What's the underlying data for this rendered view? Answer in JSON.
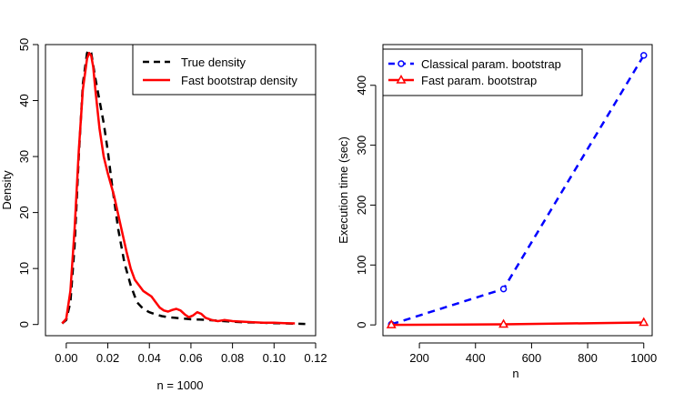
{
  "chart_data": [
    {
      "type": "line",
      "title": "",
      "xlabel": "n = 1000",
      "ylabel": "Density",
      "xlim": [
        -0.01,
        0.12
      ],
      "ylim": [
        -2,
        50
      ],
      "xticks": [
        "0.00",
        "0.02",
        "0.04",
        "0.06",
        "0.08",
        "0.10",
        "0.12"
      ],
      "yticks": [
        "0",
        "10",
        "20",
        "30",
        "40",
        "50"
      ],
      "legend_position": "top-right",
      "series": [
        {
          "name": "True density",
          "color": "#000000",
          "style": "dashed",
          "x": [
            -0.002,
            0.0,
            0.002,
            0.004,
            0.006,
            0.008,
            0.01,
            0.011,
            0.012,
            0.014,
            0.016,
            0.018,
            0.02,
            0.022,
            0.025,
            0.028,
            0.031,
            0.034,
            0.037,
            0.04,
            0.043,
            0.046,
            0.049,
            0.052,
            0.055,
            0.058,
            0.061,
            0.064,
            0.068,
            0.072,
            0.076,
            0.08,
            0.085,
            0.09,
            0.095,
            0.1,
            0.105,
            0.11,
            0.115
          ],
          "y": [
            0.2,
            0.8,
            4,
            14,
            30,
            43,
            48.5,
            49,
            48.5,
            44,
            40,
            36,
            31,
            25,
            17,
            11,
            7,
            4,
            2.8,
            2.2,
            1.8,
            1.5,
            1.3,
            1.2,
            1.1,
            1.0,
            0.9,
            0.9,
            0.8,
            0.7,
            0.6,
            0.5,
            0.4,
            0.35,
            0.3,
            0.25,
            0.2,
            0.15,
            0.1
          ]
        },
        {
          "name": "Fast bootstrap density",
          "color": "#ff0000",
          "style": "solid",
          "x": [
            -0.002,
            0.0,
            0.002,
            0.004,
            0.006,
            0.008,
            0.01,
            0.011,
            0.012,
            0.013,
            0.014,
            0.016,
            0.018,
            0.02,
            0.023,
            0.026,
            0.029,
            0.031,
            0.033,
            0.035,
            0.037,
            0.039,
            0.041,
            0.043,
            0.045,
            0.047,
            0.049,
            0.051,
            0.053,
            0.055,
            0.057,
            0.059,
            0.061,
            0.063,
            0.065,
            0.067,
            0.07,
            0.073,
            0.076,
            0.08,
            0.085,
            0.09,
            0.095,
            0.1,
            0.105,
            0.11
          ],
          "y": [
            0.2,
            1,
            6,
            17,
            31,
            42,
            47.5,
            48.5,
            48,
            46,
            42,
            35,
            30,
            27,
            23,
            18,
            13,
            10,
            8,
            7,
            6,
            5.5,
            5,
            4,
            3,
            2.5,
            2.3,
            2.6,
            2.8,
            2.5,
            1.8,
            1.3,
            1.6,
            2.2,
            1.9,
            1.2,
            0.8,
            0.6,
            0.8,
            0.6,
            0.5,
            0.4,
            0.3,
            0.3,
            0.25,
            0.2
          ]
        }
      ]
    },
    {
      "type": "line",
      "title": "",
      "xlabel": "n",
      "ylabel": "Execution time (sec)",
      "xlim": [
        70,
        1030
      ],
      "ylim": [
        -18,
        468
      ],
      "xticks": [
        "200",
        "400",
        "600",
        "800",
        "1000"
      ],
      "yticks": [
        "0",
        "100",
        "200",
        "300",
        "400"
      ],
      "legend_position": "top-left",
      "series": [
        {
          "name": "Classical param. bootstrap",
          "color": "#0000ff",
          "style": "dashed",
          "marker": "circle",
          "x": [
            100,
            500,
            1000
          ],
          "y": [
            1,
            60,
            450
          ]
        },
        {
          "name": "Fast param. bootstrap",
          "color": "#ff0000",
          "style": "solid",
          "marker": "triangle",
          "x": [
            100,
            500,
            1000
          ],
          "y": [
            0,
            1,
            4
          ]
        }
      ]
    }
  ]
}
